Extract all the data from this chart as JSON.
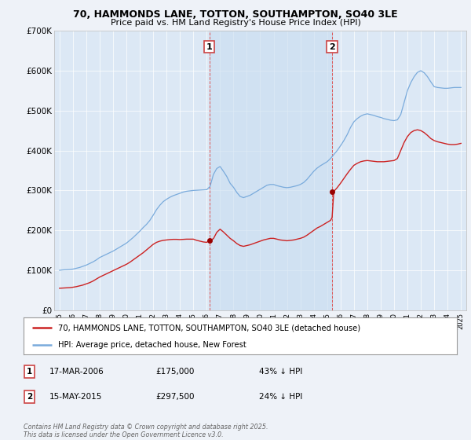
{
  "title": "70, HAMMONDS LANE, TOTTON, SOUTHAMPTON, SO40 3LE",
  "subtitle": "Price paid vs. HM Land Registry's House Price Index (HPI)",
  "background_color": "#eef2f8",
  "plot_bg_color": "#dce8f5",
  "shade_color": "#c8ddf0",
  "legend_line1": "70, HAMMONDS LANE, TOTTON, SOUTHAMPTON, SO40 3LE (detached house)",
  "legend_line2": "HPI: Average price, detached house, New Forest",
  "footer": "Contains HM Land Registry data © Crown copyright and database right 2025.\nThis data is licensed under the Open Government Licence v3.0.",
  "sale1_date": "17-MAR-2006",
  "sale1_price": "£175,000",
  "sale1_hpi": "43% ↓ HPI",
  "sale2_date": "15-MAY-2015",
  "sale2_price": "£297,500",
  "sale2_hpi": "24% ↓ HPI",
  "sale1_x": 2006.2,
  "sale1_y": 175000,
  "sale2_x": 2015.37,
  "sale2_y": 297500,
  "ylim": [
    0,
    700000
  ],
  "xlim_start": 1994.6,
  "xlim_end": 2025.4,
  "red_line_color": "#cc2222",
  "blue_line_color": "#7aabdc",
  "marker_color": "#990000",
  "vline_color": "#dd5555",
  "grid_color": "#ffffff",
  "label_box_color": "#cc4444"
}
